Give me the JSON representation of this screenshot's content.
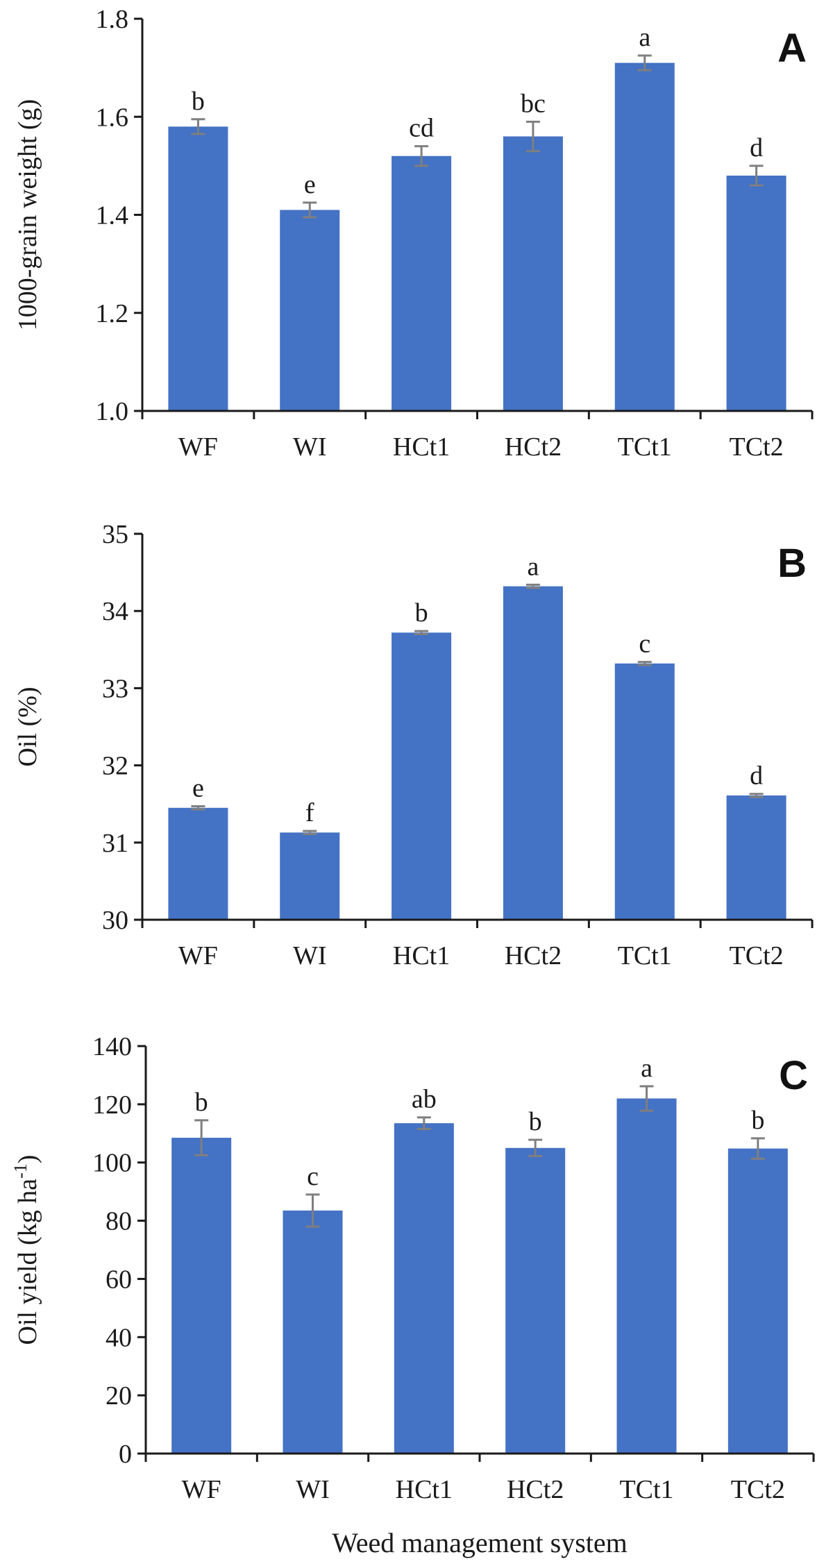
{
  "figure": {
    "xaxis_title": "Weed management system",
    "colors": {
      "bar": "#4472C4",
      "error": "#7f7f7f",
      "axis": "#1a1a1a",
      "text": "#1a1a1a"
    }
  },
  "chart_data": [
    {
      "type": "bar",
      "panel_label": "A",
      "ylabel": "1000-grain weight (g)",
      "categories": [
        "WF",
        "WI",
        "HCt1",
        "HCt2",
        "TCt1",
        "TCt2"
      ],
      "values": [
        1.58,
        1.41,
        1.52,
        1.56,
        1.71,
        1.48
      ],
      "errors": [
        0.015,
        0.015,
        0.02,
        0.03,
        0.015,
        0.02
      ],
      "letters": [
        "b",
        "e",
        "cd",
        "bc",
        "a",
        "d"
      ],
      "ylim": [
        1.0,
        1.8
      ],
      "yticks": [
        "1.0",
        "1.2",
        "1.4",
        "1.6",
        "1.8"
      ]
    },
    {
      "type": "bar",
      "panel_label": "B",
      "ylabel": "Oil (%)",
      "categories": [
        "WF",
        "WI",
        "HCt1",
        "HCt2",
        "TCt1",
        "TCt2"
      ],
      "values": [
        31.45,
        31.13,
        33.72,
        34.32,
        33.32,
        31.61
      ],
      "errors": [
        0.02,
        0.02,
        0.02,
        0.02,
        0.02,
        0.02
      ],
      "letters": [
        "e",
        "f",
        "b",
        "a",
        "c",
        "d"
      ],
      "ylim": [
        30,
        35
      ],
      "yticks": [
        "30",
        "31",
        "32",
        "33",
        "34",
        "35"
      ]
    },
    {
      "type": "bar",
      "panel_label": "C",
      "ylabel": "Oil yield (kg ha",
      "ylabel_sup": "-1",
      "ylabel_end": ")",
      "categories": [
        "WF",
        "WI",
        "HCt1",
        "HCt2",
        "TCt1",
        "TCt2"
      ],
      "values": [
        108.5,
        83.5,
        113.5,
        105.0,
        122.0,
        104.8
      ],
      "errors": [
        6.0,
        5.5,
        2.0,
        2.8,
        4.2,
        3.5
      ],
      "letters": [
        "b",
        "c",
        "ab",
        "b",
        "a",
        "b"
      ],
      "ylim": [
        0,
        140
      ],
      "yticks": [
        "0",
        "20",
        "40",
        "60",
        "80",
        "100",
        "120",
        "140"
      ]
    }
  ]
}
